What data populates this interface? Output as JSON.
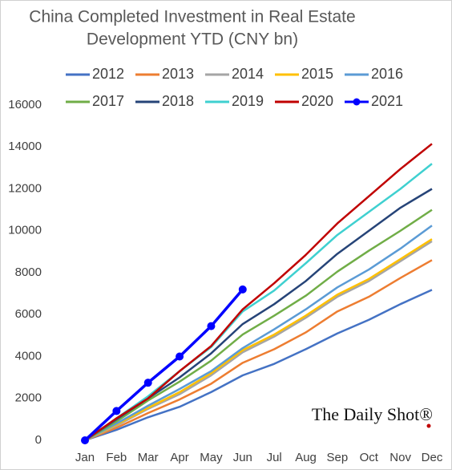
{
  "chart_data": {
    "type": "line",
    "title_lines": [
      "China Completed Investment in Real Estate",
      "Development YTD (CNY bn)"
    ],
    "watermark": "The Daily Shot®",
    "categories": [
      "Jan",
      "Feb",
      "Mar",
      "Apr",
      "May",
      "Jun",
      "Jul",
      "Aug",
      "Sep",
      "Oct",
      "Nov",
      "Dec"
    ],
    "ylim": [
      0,
      16000
    ],
    "yticks": [
      0,
      2000,
      4000,
      6000,
      8000,
      10000,
      12000,
      14000,
      16000
    ],
    "grid": false,
    "legend": "top",
    "series": [
      {
        "name": "2012",
        "color": "#4472c4",
        "values": [
          0,
          500,
          1100,
          1600,
          2300,
          3100,
          3650,
          4350,
          5100,
          5750,
          6500,
          7180
        ]
      },
      {
        "name": "2013",
        "color": "#ed7d31",
        "values": [
          0,
          600,
          1300,
          1950,
          2700,
          3700,
          4350,
          5150,
          6150,
          6850,
          7750,
          8600
        ]
      },
      {
        "name": "2014",
        "color": "#a5a5a5",
        "values": [
          0,
          700,
          1500,
          2200,
          3100,
          4200,
          4950,
          5850,
          6850,
          7600,
          8550,
          9500
        ]
      },
      {
        "name": "2015",
        "color": "#ffc000",
        "values": [
          0,
          750,
          1550,
          2300,
          3200,
          4300,
          5050,
          5950,
          6950,
          7700,
          8650,
          9600
        ]
      },
      {
        "name": "2016",
        "color": "#5b9bd5",
        "values": [
          0,
          800,
          1650,
          2450,
          3300,
          4400,
          5300,
          6250,
          7300,
          8150,
          9150,
          10250
        ]
      },
      {
        "name": "2017",
        "color": "#70ad47",
        "values": [
          0,
          900,
          1900,
          2800,
          3800,
          5050,
          5950,
          6900,
          8050,
          9050,
          10000,
          11000
        ]
      },
      {
        "name": "2018",
        "color": "#264478",
        "values": [
          0,
          1000,
          2000,
          3000,
          4150,
          5550,
          6500,
          7600,
          8900,
          10000,
          11100,
          12000
        ]
      },
      {
        "name": "2019",
        "color": "#3fd0d0",
        "values": [
          0,
          1050,
          2100,
          3300,
          4450,
          6150,
          7150,
          8450,
          9800,
          10900,
          12000,
          13200
        ]
      },
      {
        "name": "2020",
        "color": "#c00000",
        "values": [
          0,
          1050,
          2000,
          3300,
          4500,
          6250,
          7500,
          8850,
          10350,
          11650,
          12950,
          14150
        ]
      },
      {
        "name": "2021",
        "color": "#0000ff",
        "marker": true,
        "values": [
          0,
          1400,
          2750,
          4000,
          5450,
          7200,
          null,
          null,
          null,
          null,
          null,
          null
        ]
      }
    ]
  }
}
